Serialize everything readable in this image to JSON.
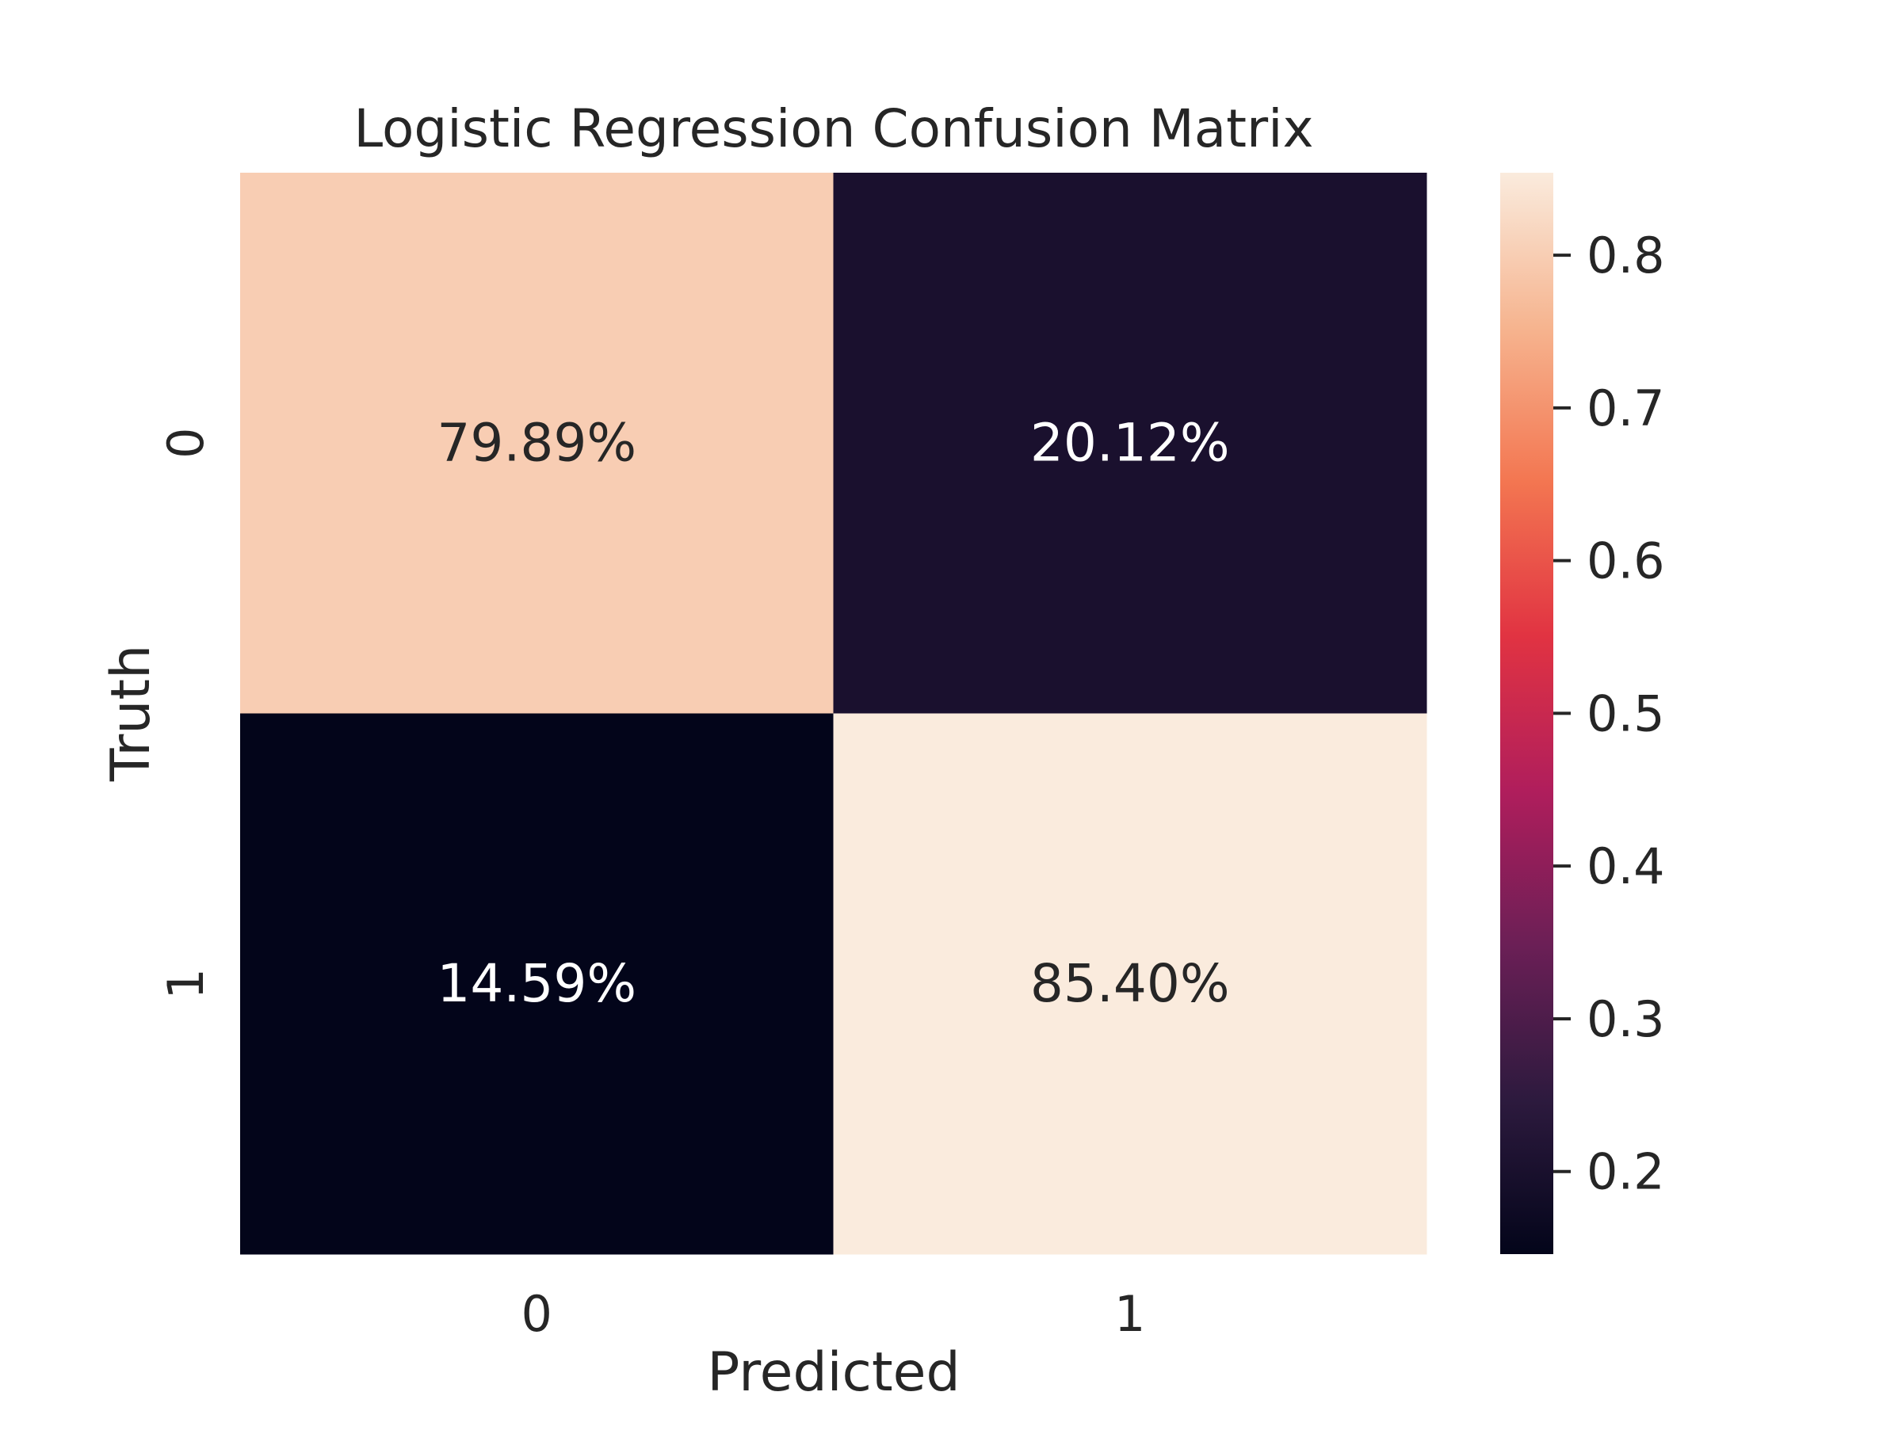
{
  "chart_data": {
    "type": "heatmap",
    "title": "Logistic Regression Confusion Matrix",
    "xlabel": "Predicted",
    "ylabel": "Truth",
    "x_categories": [
      "0",
      "1"
    ],
    "y_categories": [
      "0",
      "1"
    ],
    "values": [
      [
        0.7989,
        0.2012
      ],
      [
        0.1459,
        0.854
      ]
    ],
    "cell_labels": [
      [
        "79.89%",
        "20.12%"
      ],
      [
        "14.59%",
        "85.40%"
      ]
    ],
    "colorbar": {
      "range": [
        0.1459,
        0.854
      ],
      "ticks": [
        0.2,
        0.3,
        0.4,
        0.5,
        0.6,
        0.7,
        0.8
      ],
      "tick_labels": [
        "0.2",
        "0.3",
        "0.4",
        "0.5",
        "0.6",
        "0.7",
        "0.8"
      ]
    },
    "colormap": [
      "#03051a",
      "#2d1a3e",
      "#6b1f56",
      "#b01e5c",
      "#e13342",
      "#f37651",
      "#f6b48f",
      "#faebdd"
    ],
    "text_colors": {
      "on_dark": "#ffffff",
      "on_light": "#262626"
    }
  }
}
